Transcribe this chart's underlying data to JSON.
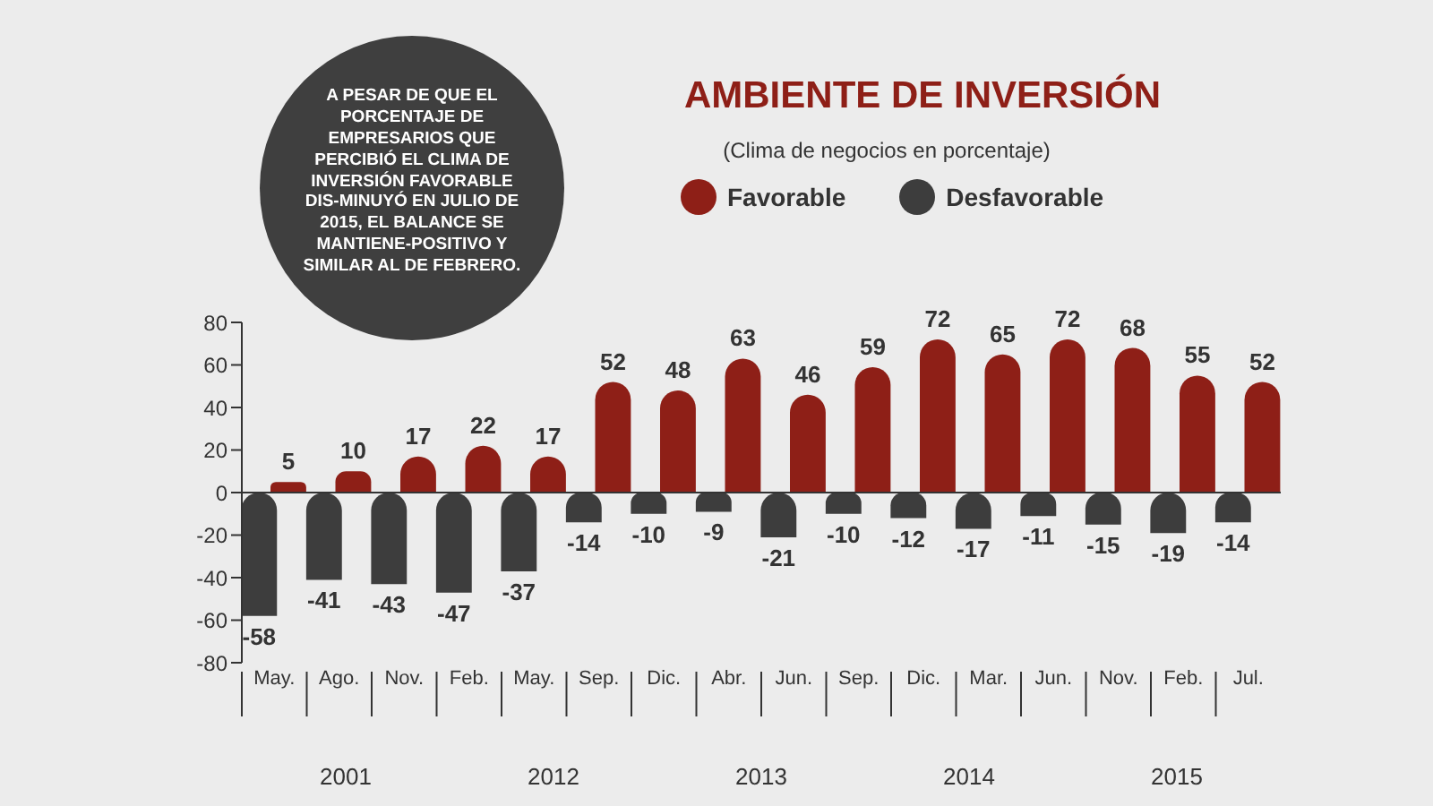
{
  "chart_data": {
    "type": "bar",
    "title": "AMBIENTE DE INVERSIÓN",
    "subtitle": "(Clima de negocios en porcentaje)",
    "categories": [
      "May.",
      "Ago.",
      "Nov.",
      "Feb.",
      "May.",
      "Sep.",
      "Dic.",
      "Abr.",
      "Jun.",
      "Sep.",
      "Dic.",
      "Mar.",
      "Jun.",
      "Nov.",
      "Feb.",
      "Jul."
    ],
    "series": [
      {
        "name": "Favorable",
        "color": "#8e1f17",
        "values": [
          5,
          10,
          17,
          22,
          17,
          52,
          48,
          63,
          46,
          59,
          72,
          65,
          72,
          68,
          55,
          52
        ]
      },
      {
        "name": "Desfavorable",
        "color": "#3d3d3d",
        "values": [
          -58,
          -41,
          -43,
          -47,
          -37,
          -14,
          -10,
          -9,
          -21,
          -10,
          -12,
          -17,
          -11,
          -15,
          -19,
          -14
        ]
      }
    ],
    "data_labels": true,
    "legend": "top right",
    "ref_lines": [
      {
        "axis": "y",
        "value": 0,
        "color": "#333333"
      }
    ],
    "ylim": [
      -80,
      80
    ],
    "yticks": [
      -80,
      -60,
      -40,
      -20,
      0,
      20,
      40,
      60,
      80
    ],
    "annotations": [
      "A PESAR DE QUE EL PORCENTAJE DE EMPRESARIOS QUE PERCIBIÓ EL CLIMA DE INVERSIÓN FAVORABLE DIS-MINUYÓ EN JULIO DE 2015, EL BALANCE SE MANTIENE-POSITIVO Y SIMILAR AL DE FEBRERO.",
      "2001",
      "2012",
      "2013",
      "2014",
      "2015"
    ]
  }
}
